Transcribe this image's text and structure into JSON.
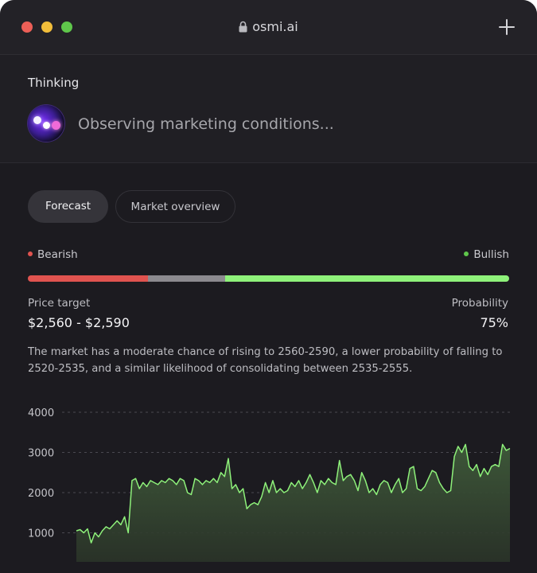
{
  "window": {
    "url": "osmi.ai",
    "icons": {
      "lock": "lock-icon",
      "new_tab": "plus-icon"
    }
  },
  "thinking": {
    "label": "Thinking",
    "status": "Observing marketing conditions...",
    "avatar_icon": "ai-orb-icon"
  },
  "tabs": [
    {
      "label": "Forecast",
      "active": true
    },
    {
      "label": "Market overview",
      "active": false
    }
  ],
  "sentiment": {
    "bearish_label": "Bearish",
    "bullish_label": "Bullish",
    "bearish_share": 0.25,
    "neutral_share": 0.16,
    "bullish_share": 0.59,
    "colors": {
      "bearish": "#e0534f",
      "neutral": "#8c8a8f",
      "bullish": "#8ef17a"
    }
  },
  "forecast": {
    "price_target_label": "Price target",
    "price_target_value": "$2,560 - $2,590",
    "probability_label": "Probability",
    "probability_value": "75%",
    "description": "The market has a moderate chance of rising to 2560-2590, a lower probability of falling to 2520-2535, and a similar likelihood of consolidating between 2535-2555."
  },
  "chart_data": {
    "type": "area",
    "y_ticks": [
      "4000",
      "3000",
      "2000",
      "1000"
    ],
    "ylim": [
      0,
      4000
    ],
    "grid": true,
    "line_color": "#8ef17a",
    "values": [
      1050,
      1080,
      1000,
      1100,
      750,
      1000,
      900,
      1050,
      1150,
      1100,
      1200,
      1300,
      1200,
      1400,
      1000,
      2300,
      2350,
      2100,
      2250,
      2150,
      2300,
      2250,
      2200,
      2300,
      2250,
      2350,
      2300,
      2200,
      2350,
      2300,
      2000,
      1950,
      2350,
      2300,
      2200,
      2300,
      2250,
      2350,
      2250,
      2500,
      2400,
      2850,
      2100,
      2200,
      2000,
      2100,
      1600,
      1700,
      1750,
      1700,
      1900,
      2250,
      2000,
      2300,
      2000,
      2100,
      2000,
      2050,
      2250,
      2150,
      2300,
      2100,
      2250,
      2450,
      2250,
      2000,
      2300,
      2200,
      2350,
      2250,
      2200,
      2800,
      2300,
      2400,
      2450,
      2300,
      2050,
      2500,
      2300,
      2000,
      2100,
      1950,
      2200,
      2300,
      2250,
      2000,
      2200,
      2350,
      2000,
      2100,
      2600,
      2650,
      2100,
      2050,
      2150,
      2350,
      2550,
      2500,
      2250,
      2100,
      2000,
      2050,
      2900,
      3150,
      3000,
      3200,
      2650,
      2550,
      2700,
      2400,
      2600,
      2450,
      2650,
      2700,
      2650,
      3200,
      3050,
      3100
    ]
  }
}
